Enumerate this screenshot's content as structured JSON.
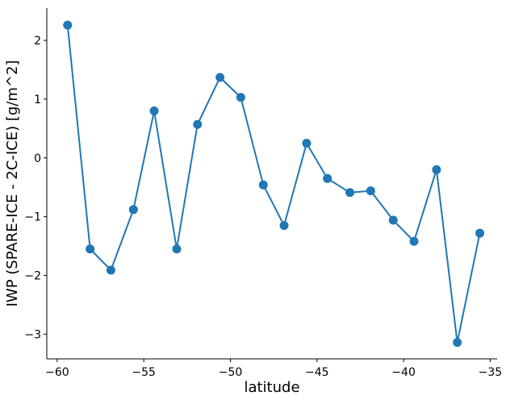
{
  "chart_data": {
    "type": "line",
    "xlabel": "latitude",
    "ylabel": "IWP (SPARE-ICE - 2C-ICE) [g/m^2]",
    "xlim": [
      -60.6,
      -34.6
    ],
    "ylim": [
      -3.42,
      2.55
    ],
    "x_ticks": [
      -60,
      -55,
      -50,
      -45,
      -40,
      -35
    ],
    "x_tick_labels": [
      "−60",
      "−55",
      "−50",
      "−45",
      "−40",
      "−35"
    ],
    "y_ticks": [
      2,
      1,
      0,
      -1,
      -2,
      -3
    ],
    "y_tick_labels": [
      "2",
      "1",
      "0",
      "−1",
      "−2",
      "−3"
    ],
    "grid": false,
    "color": "#1f77b4",
    "series": [
      {
        "x": [
          -59.4,
          -58.1,
          -56.9,
          -55.6,
          -54.4,
          -53.1,
          -51.9,
          -50.6,
          -49.4,
          -48.1,
          -46.9,
          -45.6,
          -44.4,
          -43.1,
          -41.9,
          -40.6,
          -39.4,
          -38.1,
          -36.9,
          -35.6
        ],
        "y": [
          2.26,
          -1.55,
          -1.91,
          -0.88,
          0.8,
          -1.55,
          0.57,
          1.37,
          1.03,
          -0.46,
          -1.15,
          0.25,
          -0.35,
          -0.59,
          -0.56,
          -1.06,
          -1.42,
          -0.2,
          -3.14,
          -1.28
        ]
      }
    ]
  }
}
